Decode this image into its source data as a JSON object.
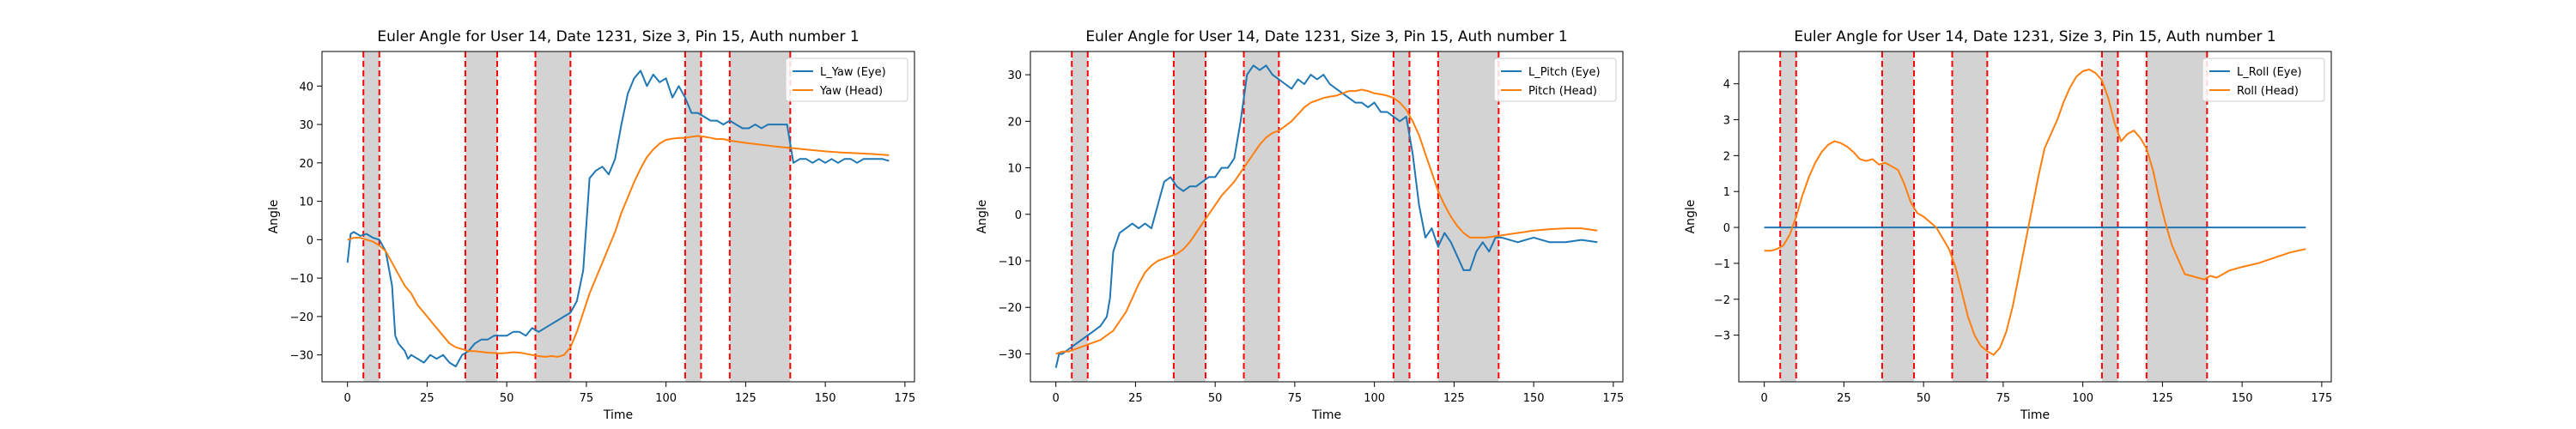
{
  "chart_data": [
    {
      "type": "line",
      "title": "Euler Angle for User 14, Date 1231, Size 3, Pin 15, Auth number 1",
      "xlabel": "Time",
      "ylabel": "Angle",
      "xlim": [
        -8,
        178
      ],
      "ylim": [
        -37,
        49
      ],
      "xticks": [
        0,
        25,
        50,
        75,
        100,
        125,
        150,
        175
      ],
      "yticks": [
        -30,
        -20,
        -10,
        0,
        10,
        20,
        30,
        40
      ],
      "legend_position": "top-right",
      "grid": false,
      "shaded_intervals": [
        [
          5,
          10
        ],
        [
          37,
          47
        ],
        [
          59,
          70
        ],
        [
          106,
          111
        ],
        [
          120,
          139
        ]
      ],
      "series": [
        {
          "name": "L_Yaw (Eye)",
          "color": "#1f77b4",
          "x": [
            0,
            1,
            2,
            4,
            6,
            8,
            10,
            12,
            14,
            15,
            16,
            17,
            18,
            19,
            20,
            22,
            24,
            26,
            28,
            30,
            32,
            34,
            36,
            38,
            40,
            42,
            44,
            46,
            48,
            50,
            52,
            54,
            56,
            58,
            60,
            62,
            64,
            66,
            68,
            70,
            72,
            74,
            76,
            78,
            80,
            82,
            84,
            86,
            88,
            90,
            92,
            94,
            96,
            98,
            100,
            102,
            104,
            106,
            108,
            110,
            112,
            114,
            116,
            118,
            120,
            122,
            124,
            126,
            128,
            130,
            132,
            134,
            136,
            138,
            140,
            142,
            144,
            146,
            148,
            150,
            152,
            154,
            156,
            158,
            160,
            162,
            164,
            166,
            168,
            170
          ],
          "y": [
            -6,
            1.5,
            2,
            1,
            1.5,
            0.5,
            0,
            -3,
            -12,
            -25,
            -27,
            -28,
            -29,
            -31,
            -30,
            -31,
            -32,
            -30,
            -31,
            -30,
            -32,
            -33,
            -30,
            -29,
            -27,
            -26,
            -26,
            -25,
            -25,
            -25,
            -24,
            -24,
            -25,
            -23,
            -24,
            -23,
            -22,
            -21,
            -20,
            -19,
            -16,
            -8,
            16,
            18,
            19,
            17,
            21,
            30,
            38,
            42,
            44,
            40,
            43,
            41,
            42,
            37,
            40,
            37,
            33,
            33,
            32,
            31,
            31,
            30,
            31,
            30,
            29,
            29,
            30,
            29,
            30,
            30,
            30,
            30,
            20,
            21,
            21,
            20,
            21,
            20,
            21,
            20,
            21,
            21,
            20,
            21,
            21,
            21,
            21,
            20.5
          ]
        },
        {
          "name": "Yaw (Head)",
          "color": "#ff7f0e",
          "x": [
            0,
            2,
            4,
            6,
            8,
            10,
            12,
            14,
            16,
            18,
            20,
            22,
            24,
            26,
            28,
            30,
            32,
            34,
            36,
            38,
            40,
            42,
            44,
            46,
            48,
            50,
            52,
            54,
            56,
            58,
            60,
            62,
            64,
            66,
            68,
            70,
            72,
            74,
            76,
            78,
            80,
            82,
            84,
            86,
            88,
            90,
            92,
            94,
            96,
            98,
            100,
            102,
            104,
            106,
            108,
            110,
            112,
            114,
            116,
            118,
            120,
            125,
            130,
            135,
            140,
            145,
            150,
            155,
            160,
            165,
            170
          ],
          "y": [
            0,
            0.5,
            0.5,
            0,
            -0.5,
            -1.5,
            -3,
            -6,
            -9,
            -12,
            -14,
            -17,
            -19,
            -21,
            -23,
            -25,
            -27,
            -28,
            -28.5,
            -29,
            -29,
            -29.2,
            -29.4,
            -29.5,
            -29.6,
            -29.5,
            -29.3,
            -29.4,
            -29.7,
            -30,
            -30.3,
            -30.5,
            -30.3,
            -30.5,
            -30,
            -28,
            -24,
            -19,
            -14,
            -10,
            -6,
            -2,
            2,
            7,
            11,
            15,
            18.5,
            21.5,
            23.5,
            25,
            26,
            26.3,
            26.5,
            26.5,
            26.8,
            27,
            26.8,
            26.5,
            26.2,
            26.2,
            25.8,
            25.2,
            24.7,
            24.2,
            23.8,
            23.4,
            23,
            22.7,
            22.5,
            22.3,
            22
          ]
        }
      ]
    },
    {
      "type": "line",
      "title": "Euler Angle for User 14, Date 1231, Size 3, Pin 15, Auth number 1",
      "xlabel": "Time",
      "ylabel": "Angle",
      "xlim": [
        -8,
        178
      ],
      "ylim": [
        -36,
        35
      ],
      "xticks": [
        0,
        25,
        50,
        75,
        100,
        125,
        150,
        175
      ],
      "yticks": [
        -30,
        -20,
        -10,
        0,
        10,
        20,
        30
      ],
      "legend_position": "top-right",
      "grid": false,
      "shaded_intervals": [
        [
          5,
          10
        ],
        [
          37,
          47
        ],
        [
          59,
          70
        ],
        [
          106,
          111
        ],
        [
          120,
          139
        ]
      ],
      "series": [
        {
          "name": "L_Pitch (Eye)",
          "color": "#1f77b4",
          "x": [
            0,
            1,
            2,
            4,
            6,
            8,
            10,
            12,
            14,
            16,
            17,
            18,
            20,
            22,
            24,
            26,
            28,
            30,
            32,
            34,
            36,
            38,
            40,
            42,
            44,
            46,
            48,
            50,
            52,
            54,
            56,
            58,
            60,
            62,
            64,
            66,
            68,
            70,
            72,
            74,
            76,
            78,
            80,
            82,
            84,
            86,
            88,
            90,
            92,
            94,
            96,
            98,
            100,
            102,
            104,
            106,
            108,
            110,
            112,
            114,
            116,
            118,
            120,
            122,
            124,
            126,
            128,
            130,
            132,
            134,
            136,
            138,
            140,
            145,
            150,
            155,
            160,
            165,
            170
          ],
          "y": [
            -33,
            -30,
            -30,
            -29,
            -28,
            -27,
            -26,
            -25,
            -24,
            -22,
            -18,
            -8,
            -4,
            -3,
            -2,
            -3,
            -2,
            -3,
            2,
            7,
            8,
            6,
            5,
            6,
            6,
            7,
            8,
            8,
            10,
            10,
            12,
            20,
            30,
            32,
            31,
            32,
            30,
            29,
            28,
            27,
            29,
            28,
            30,
            29,
            30,
            28,
            27,
            26,
            25,
            24,
            24,
            23,
            24,
            22,
            22,
            21,
            20,
            21,
            13,
            2,
            -5,
            -3,
            -7,
            -4,
            -6,
            -9,
            -12,
            -12,
            -8,
            -6,
            -8,
            -5,
            -5,
            -6,
            -5,
            -6,
            -6,
            -5.5,
            -6
          ]
        },
        {
          "name": "Pitch (Head)",
          "color": "#ff7f0e",
          "x": [
            0,
            2,
            4,
            6,
            8,
            10,
            12,
            14,
            16,
            18,
            20,
            22,
            24,
            26,
            28,
            30,
            32,
            34,
            36,
            38,
            40,
            42,
            44,
            46,
            48,
            50,
            52,
            54,
            56,
            58,
            60,
            62,
            64,
            66,
            68,
            70,
            72,
            74,
            76,
            78,
            80,
            82,
            84,
            86,
            88,
            90,
            92,
            94,
            96,
            98,
            100,
            102,
            104,
            106,
            108,
            110,
            112,
            114,
            116,
            118,
            120,
            122,
            124,
            126,
            128,
            130,
            135,
            140,
            145,
            150,
            155,
            160,
            165,
            170
          ],
          "y": [
            -30,
            -29.5,
            -29.5,
            -29,
            -28.5,
            -28,
            -27.5,
            -27,
            -26,
            -25,
            -23,
            -21,
            -18,
            -15,
            -12.5,
            -11,
            -10,
            -9.5,
            -9,
            -8.5,
            -7.5,
            -6,
            -4,
            -2,
            0,
            2,
            4,
            5.5,
            7,
            9,
            11,
            13,
            15,
            16.5,
            17.5,
            18,
            19,
            20,
            21.5,
            23,
            24,
            24.5,
            25,
            25.3,
            25.5,
            26,
            26.5,
            26.5,
            26.8,
            26.5,
            26,
            25.8,
            25.5,
            25,
            24,
            22.5,
            20,
            17,
            13,
            9,
            5,
            2,
            -0.5,
            -2.5,
            -4,
            -5,
            -5,
            -4.5,
            -4,
            -3.5,
            -3.2,
            -3,
            -3,
            -3.5
          ]
        }
      ]
    },
    {
      "type": "line",
      "title": "Euler Angle for User 14, Date 1231, Size 3, Pin 15, Auth number 1",
      "xlabel": "Time",
      "ylabel": "Angle",
      "xlim": [
        -8,
        178
      ],
      "ylim": [
        -4.3,
        4.9
      ],
      "xticks": [
        0,
        25,
        50,
        75,
        100,
        125,
        150,
        175
      ],
      "yticks": [
        -3,
        -2,
        -1,
        0,
        1,
        2,
        3,
        4
      ],
      "legend_position": "top-right",
      "grid": false,
      "shaded_intervals": [
        [
          5,
          10
        ],
        [
          37,
          47
        ],
        [
          59,
          70
        ],
        [
          106,
          111
        ],
        [
          120,
          139
        ]
      ],
      "series": [
        {
          "name": "L_Roll (Eye)",
          "color": "#1f77b4",
          "x": [
            0,
            170
          ],
          "y": [
            0,
            0
          ]
        },
        {
          "name": "Roll (Head)",
          "color": "#ff7f0e",
          "x": [
            0,
            2,
            4,
            6,
            8,
            10,
            12,
            14,
            16,
            18,
            20,
            22,
            24,
            26,
            28,
            30,
            32,
            34,
            36,
            38,
            40,
            42,
            44,
            46,
            48,
            50,
            52,
            54,
            56,
            58,
            60,
            62,
            64,
            66,
            68,
            70,
            72,
            74,
            76,
            78,
            80,
            82,
            84,
            86,
            88,
            90,
            92,
            94,
            96,
            98,
            100,
            102,
            104,
            106,
            108,
            110,
            112,
            114,
            116,
            118,
            120,
            122,
            124,
            126,
            128,
            130,
            132,
            134,
            136,
            138,
            140,
            142,
            144,
            146,
            148,
            150,
            155,
            160,
            165,
            170
          ],
          "y": [
            -0.65,
            -0.65,
            -0.6,
            -0.5,
            -0.2,
            0.3,
            0.9,
            1.4,
            1.8,
            2.1,
            2.3,
            2.4,
            2.35,
            2.25,
            2.1,
            1.9,
            1.85,
            1.9,
            1.75,
            1.8,
            1.7,
            1.6,
            1.2,
            0.7,
            0.4,
            0.3,
            0.15,
            0,
            -0.3,
            -0.6,
            -1.1,
            -1.8,
            -2.5,
            -3.0,
            -3.3,
            -3.45,
            -3.55,
            -3.35,
            -2.9,
            -2.2,
            -1.3,
            -0.4,
            0.5,
            1.4,
            2.2,
            2.6,
            3.0,
            3.5,
            3.9,
            4.2,
            4.35,
            4.4,
            4.3,
            4.1,
            3.6,
            2.9,
            2.4,
            2.6,
            2.7,
            2.5,
            2.2,
            1.6,
            0.8,
            0.1,
            -0.5,
            -0.9,
            -1.3,
            -1.35,
            -1.4,
            -1.45,
            -1.35,
            -1.4,
            -1.3,
            -1.2,
            -1.15,
            -1.1,
            -1.0,
            -0.85,
            -0.7,
            -0.6
          ]
        }
      ]
    }
  ]
}
